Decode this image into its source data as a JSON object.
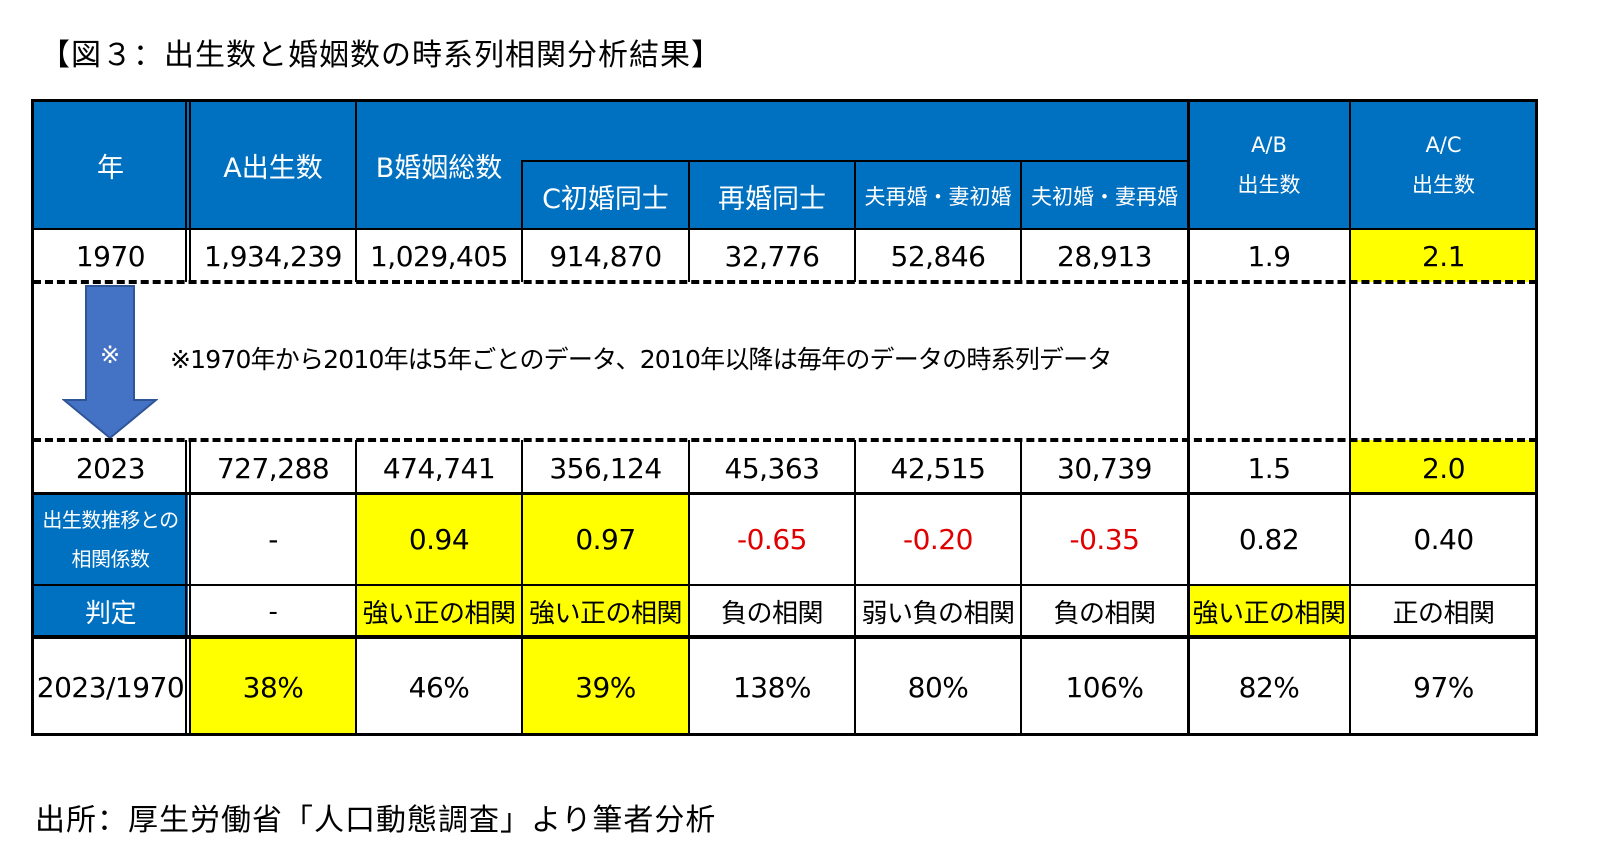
{
  "title": "【図３：出生数と婚姻数の時系列相関分析結果】",
  "footer": "出所：厚生労働省「人口動態調査」より筆者分析",
  "header": {
    "year": "年",
    "births": "A出生数",
    "marriages": "B婚姻総数",
    "c_first": "C初婚同士",
    "remarriage": "再婚同士",
    "husband_re": "夫再婚・妻初婚",
    "wife_re": "夫初婚・妻再婚",
    "ab_line1": "A/B",
    "ab_line2": "出生数",
    "ac_line1": "A/C",
    "ac_line2": "出生数"
  },
  "row1970": [
    "1970",
    "1,934,239",
    "1,029,405",
    "914,870",
    "32,776",
    "52,846",
    "28,913",
    "1.9",
    "2.1"
  ],
  "note": {
    "arrow_mark": "※",
    "text": "※1970年から2010年は5年ごとのデータ、2010年以降は毎年のデータの時系列データ"
  },
  "row2023": [
    "2023",
    "727,288",
    "474,741",
    "356,124",
    "45,363",
    "42,515",
    "30,739",
    "1.5",
    "2.0"
  ],
  "corr": {
    "label_line1": "出生数推移との",
    "label_line2": "相関係数",
    "values": [
      "-",
      "0.94",
      "0.97",
      "-0.65",
      "-0.20",
      "-0.35",
      "0.82",
      "0.40"
    ]
  },
  "judge": {
    "label": "判定",
    "values": [
      "-",
      "強い正の相関",
      "強い正の相関",
      "負の相関",
      "弱い負の相関",
      "負の相関",
      "強い正の相関",
      "正の相関"
    ]
  },
  "ratio": {
    "label": "2023/1970",
    "values": [
      "38%",
      "46%",
      "39%",
      "138%",
      "80%",
      "106%",
      "82%",
      "97%"
    ]
  },
  "colors": {
    "header_blue": "#0070C0",
    "highlight": "#FFFF00",
    "negative": "#E00000"
  }
}
